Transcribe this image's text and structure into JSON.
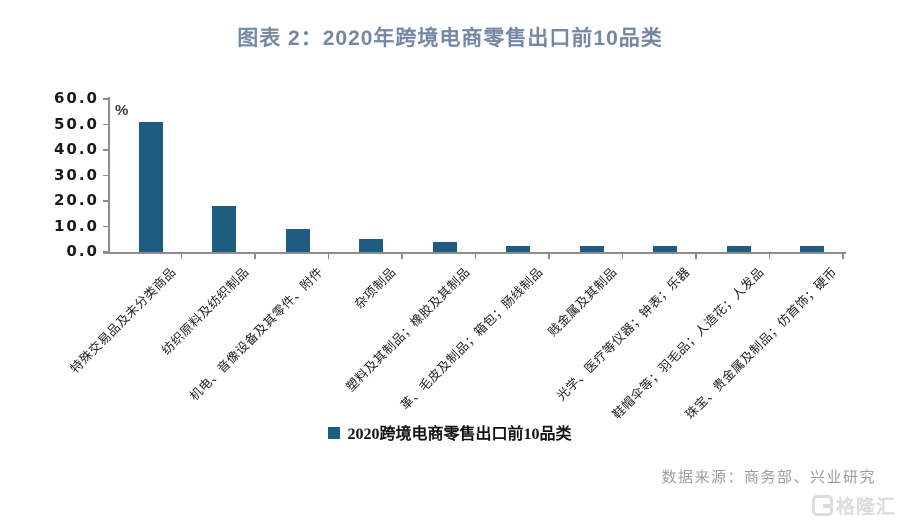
{
  "title": "图表 2：2020年跨境电商零售出口前10品类",
  "chart_data": {
    "type": "bar",
    "title": "2020年跨境电商零售出口前10品类",
    "xlabel": "",
    "ylabel": "%",
    "ylim": [
      0,
      60
    ],
    "ytick_labels": [
      "60.0",
      "50.0",
      "40.0",
      "30.0",
      "20.0",
      "10.0",
      "0.0"
    ],
    "grid": false,
    "legend_position": "bottom",
    "bar_color": "#1f5c82",
    "categories": [
      "特殊交易品及未分类商品",
      "纺织原料及纺织制品",
      "机电、音像设备及其零件、附件",
      "杂项制品",
      "塑料及其制品；橡胶及其制品",
      "革、毛皮及制品；箱包；肠线制品",
      "贱金属及其制品",
      "光学、医疗等仪器；钟表；乐器",
      "鞋帽伞等；羽毛品；人造花；人发品",
      "珠宝、贵金属及制品；仿首饰；硬币"
    ],
    "series": [
      {
        "name": "2020跨境电商零售出口前10品类",
        "values": [
          51.0,
          18.0,
          9.0,
          5.0,
          4.0,
          2.5,
          2.5,
          2.5,
          2.5,
          2.5
        ]
      }
    ]
  },
  "legend": {
    "label": "2020跨境电商零售出口前10品类"
  },
  "source": {
    "text": "数据来源：商务部、兴业研究"
  },
  "logo": {
    "text": "格隆汇"
  },
  "colors": {
    "title": "#7488a6",
    "bar": "#1f5c82",
    "axis": "#8c8c8c",
    "source_text": "#9c9c9c",
    "logo": "#dcdcdc"
  }
}
